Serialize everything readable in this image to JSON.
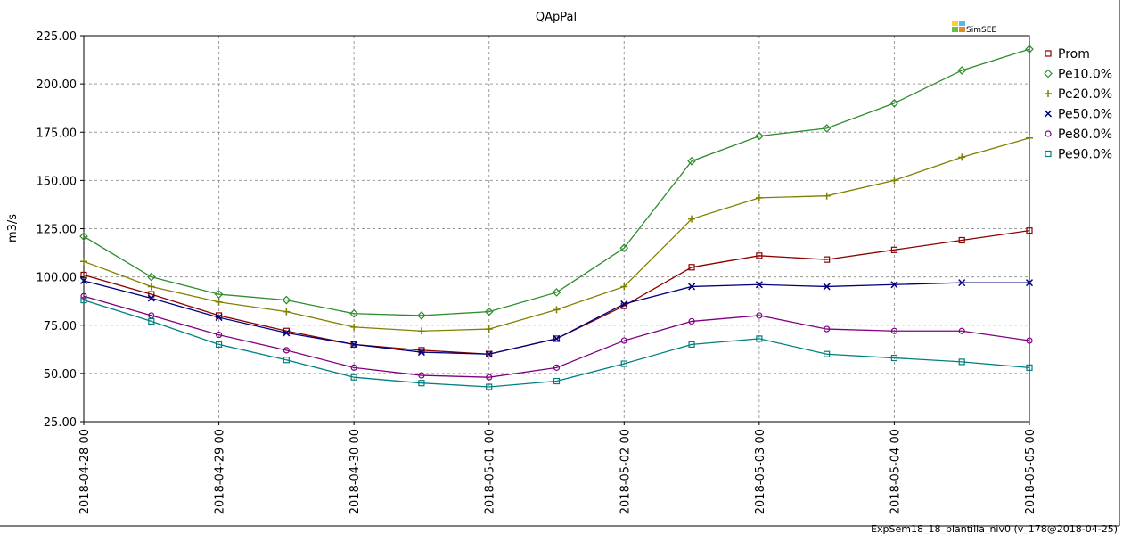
{
  "chart_data": {
    "type": "line",
    "title": "QApPal",
    "ylabel": "m3/s",
    "xlabel": "",
    "ylim": [
      25,
      225
    ],
    "yticks": [
      "25.00",
      "50.00",
      "75.00",
      "100.00",
      "125.00",
      "150.00",
      "175.00",
      "200.00",
      "225.00"
    ],
    "x": [
      "2018-04-28 00",
      "2018-04-28 12",
      "2018-04-29 00",
      "2018-04-29 12",
      "2018-04-30 00",
      "2018-04-30 12",
      "2018-05-01 00",
      "2018-05-01 12",
      "2018-05-02 00",
      "2018-05-02 12",
      "2018-05-03 00",
      "2018-05-03 12",
      "2018-05-04 00",
      "2018-05-04 12",
      "2018-05-05 00"
    ],
    "xticks": [
      "2018-04-28 00",
      "2018-04-29 00",
      "2018-04-30 00",
      "2018-05-01 00",
      "2018-05-02 00",
      "2018-05-03 00",
      "2018-05-04 00",
      "2018-05-05 00"
    ],
    "grid": true,
    "legend_position": "right",
    "series": [
      {
        "name": "Prom",
        "color": "#8b0000",
        "marker": "square",
        "values": [
          101,
          91,
          80,
          72,
          65,
          62,
          60,
          68,
          85,
          105,
          111,
          109,
          114,
          119,
          124
        ]
      },
      {
        "name": "Pe10.0%",
        "color": "#2e8b2e",
        "marker": "diamond",
        "values": [
          121,
          100,
          91,
          88,
          81,
          80,
          82,
          92,
          115,
          160,
          173,
          177,
          190,
          207,
          218
        ]
      },
      {
        "name": "Pe20.0%",
        "color": "#808000",
        "marker": "plus",
        "values": [
          108,
          95,
          87,
          82,
          74,
          72,
          73,
          83,
          95,
          130,
          141,
          142,
          150,
          162,
          172
        ]
      },
      {
        "name": "Pe50.0%",
        "color": "#000080",
        "marker": "cross",
        "values": [
          98,
          89,
          79,
          71,
          65,
          61,
          60,
          68,
          86,
          95,
          96,
          95,
          96,
          97,
          97
        ]
      },
      {
        "name": "Pe80.0%",
        "color": "#800080",
        "marker": "circle",
        "values": [
          90,
          80,
          70,
          62,
          53,
          49,
          48,
          53,
          67,
          77,
          80,
          73,
          72,
          72,
          67
        ]
      },
      {
        "name": "Pe90.0%",
        "color": "#008080",
        "marker": "square",
        "values": [
          88,
          77,
          65,
          57,
          48,
          45,
          43,
          46,
          55,
          65,
          68,
          60,
          58,
          56,
          53
        ]
      }
    ]
  },
  "logo_text": "SimSEE",
  "footer": "ExpSem18_18_plantilla_niv0 (v_178@2018-04-25)"
}
